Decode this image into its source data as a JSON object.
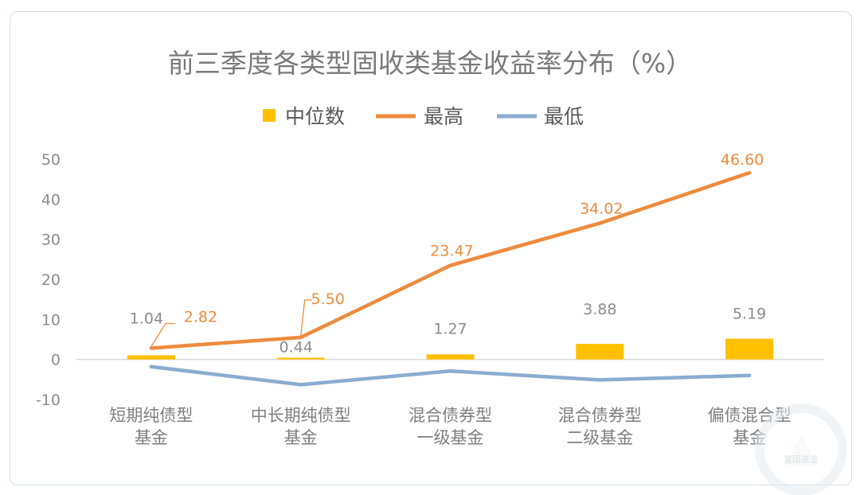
{
  "chart_data": {
    "type": "bar+line",
    "title": "前三季度各类型固收类基金收益率分布（%）",
    "categories": [
      [
        "短期纯债型",
        "基金"
      ],
      [
        "中长期纯债型",
        "基金"
      ],
      [
        "混合债券型",
        "一级基金"
      ],
      [
        "混合债券型",
        "二级基金"
      ],
      [
        "偏债混合型",
        "基金"
      ]
    ],
    "series": [
      {
        "name": "中位数",
        "kind": "bar",
        "color": "#ffc000",
        "values": [
          1.04,
          0.44,
          1.27,
          3.88,
          5.19
        ]
      },
      {
        "name": "最高",
        "kind": "line",
        "color": "#ed8b3e",
        "values": [
          2.82,
          5.5,
          23.47,
          34.02,
          46.6
        ]
      },
      {
        "name": "最低",
        "kind": "line",
        "color": "#8aaccf",
        "values": [
          -1.8,
          -6.3,
          -2.9,
          -5.1,
          -4.0
        ]
      }
    ],
    "median_labels": [
      "1.04",
      "0.44",
      "1.27",
      "3.88",
      "5.19"
    ],
    "high_labels": [
      "2.82",
      "5.50",
      "23.47",
      "34.02",
      "46.60"
    ],
    "y_ticks": [
      "50",
      "40",
      "30",
      "20",
      "10",
      "0",
      "-10"
    ],
    "ylim": [
      -10,
      50
    ],
    "grid": false,
    "legend_position": "top"
  },
  "watermark": {
    "text": "富国基金",
    "icon": "fund-logo-icon"
  }
}
